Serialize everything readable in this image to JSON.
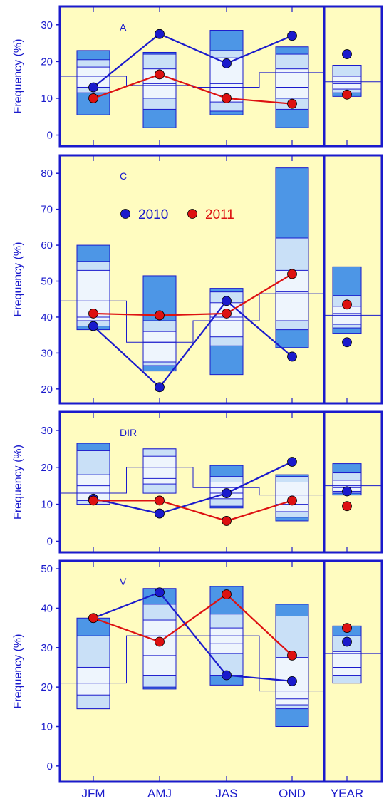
{
  "chart_data": [
    {
      "type": "box",
      "panel_label": "A",
      "ylabel": "Frequency (%)",
      "ylim": [
        -3,
        35
      ],
      "yticks": [
        0,
        10,
        20,
        30
      ],
      "categories": [
        "JFM",
        "AMJ",
        "JAS",
        "OND",
        "YEAR"
      ],
      "boxes": [
        {
          "min": 5.5,
          "p10": 11.5,
          "p25": 13,
          "median": 16,
          "p75": 18.5,
          "p90": 20.5,
          "max": 23
        },
        {
          "min": 2,
          "p10": 7,
          "p25": 10,
          "median": 14,
          "p75": 18,
          "p90": 22,
          "max": 22.5
        },
        {
          "min": 5.5,
          "p10": 6.5,
          "p25": 9,
          "median": 14,
          "p75": 21,
          "p90": 23,
          "max": 28.5
        },
        {
          "min": 2,
          "p10": 7,
          "p25": 10,
          "median": 13,
          "p75": 18,
          "p90": 22,
          "max": 24
        },
        {
          "min": 10.5,
          "p10": 11.5,
          "p25": 12.5,
          "median": 14,
          "p75": 16,
          "p90": 19,
          "max": 19
        }
      ],
      "step_means": [
        16,
        13.5,
        13,
        17
      ],
      "year_mean": 14.5,
      "series": [
        {
          "name": "2010",
          "color": "#1a1acc",
          "values": [
            13,
            27.5,
            19.5,
            27
          ],
          "year": 22
        },
        {
          "name": "2011",
          "color": "#dd1111",
          "values": [
            10,
            16.5,
            10,
            8.5
          ],
          "year": 11
        }
      ]
    },
    {
      "type": "box",
      "panel_label": "C",
      "ylabel": "Frequency (%)",
      "ylim": [
        16,
        85
      ],
      "yticks": [
        20,
        30,
        40,
        50,
        60,
        70,
        80
      ],
      "categories": [
        "JFM",
        "AMJ",
        "JAS",
        "OND",
        "YEAR"
      ],
      "boxes": [
        {
          "min": 36.5,
          "p10": 37.5,
          "p25": 39,
          "median": 40,
          "p75": 53,
          "p90": 55.5,
          "max": 60
        },
        {
          "min": 25,
          "p10": 26.5,
          "p25": 27.5,
          "median": 33,
          "p75": 36,
          "p90": 39,
          "max": 51.5
        },
        {
          "min": 24,
          "p10": 32,
          "p25": 34.5,
          "median": 40,
          "p75": 44,
          "p90": 47,
          "max": 48
        },
        {
          "min": 31.5,
          "p10": 36.5,
          "p25": 39,
          "median": 47,
          "p75": 53,
          "p90": 62,
          "max": 81.5
        },
        {
          "min": 35.5,
          "p10": 37,
          "p25": 38,
          "median": 41,
          "p75": 43,
          "p90": 46,
          "max": 54
        }
      ],
      "step_means": [
        44.5,
        33,
        39,
        46.5
      ],
      "year_mean": 40.5,
      "series": [
        {
          "name": "2010",
          "color": "#1a1acc",
          "values": [
            37.5,
            20.5,
            44.5,
            29
          ],
          "year": 33
        },
        {
          "name": "2011",
          "color": "#dd1111",
          "values": [
            41,
            40.5,
            41,
            52
          ],
          "year": 43.5
        }
      ],
      "legend": [
        {
          "label": "2010",
          "color": "#1a1acc"
        },
        {
          "label": "2011",
          "color": "#dd1111"
        }
      ]
    },
    {
      "type": "box",
      "panel_label": "DIR",
      "ylabel": "Frequency (%)",
      "ylim": [
        -3,
        35
      ],
      "yticks": [
        0,
        10,
        20,
        30
      ],
      "categories": [
        "JFM",
        "AMJ",
        "JAS",
        "OND",
        "YEAR"
      ],
      "boxes": [
        {
          "min": 10,
          "p10": 10,
          "p25": 11,
          "median": 15,
          "p75": 18,
          "p90": 24.5,
          "max": 26.5
        },
        {
          "min": 13,
          "p10": 13,
          "p25": 15.5,
          "median": 17,
          "p75": 23,
          "p90": 25,
          "max": 25
        },
        {
          "min": 9,
          "p10": 9.5,
          "p25": 11.5,
          "median": 13,
          "p75": 16,
          "p90": 17.5,
          "max": 20.5
        },
        {
          "min": 5.5,
          "p10": 6.5,
          "p25": 8,
          "median": 10,
          "p75": 16,
          "p90": 17.5,
          "max": 18
        },
        {
          "min": 12.5,
          "p10": 13,
          "p25": 13.5,
          "median": 14.5,
          "p75": 16.5,
          "p90": 18.5,
          "max": 21
        }
      ],
      "step_means": [
        13,
        20,
        14.5,
        12.5
      ],
      "year_mean": 15,
      "series": [
        {
          "name": "2010",
          "color": "#1a1acc",
          "values": [
            11.5,
            7.5,
            13,
            21.5
          ],
          "year": 13.5
        },
        {
          "name": "2011",
          "color": "#dd1111",
          "values": [
            11,
            11,
            5.5,
            11
          ],
          "year": 9.5
        }
      ]
    },
    {
      "type": "box",
      "panel_label": "V",
      "ylabel": "Frequency (%)",
      "ylim": [
        -4,
        52
      ],
      "yticks": [
        0,
        10,
        20,
        30,
        40,
        50
      ],
      "categories": [
        "JFM",
        "AMJ",
        "JAS",
        "OND",
        "YEAR"
      ],
      "boxes": [
        {
          "min": 14.5,
          "p10": 14.5,
          "p25": 18,
          "median": 21,
          "p75": 25,
          "p90": 33,
          "max": 37.5
        },
        {
          "min": 19.5,
          "p10": 20,
          "p25": 23,
          "median": 28,
          "p75": 37,
          "p90": 41,
          "max": 45
        },
        {
          "min": 20.5,
          "p10": 23,
          "p25": 28.5,
          "median": 31,
          "p75": 35,
          "p90": 38.5,
          "max": 45.5
        },
        {
          "min": 10,
          "p10": 14.5,
          "p25": 15.5,
          "median": 17,
          "p75": 27.5,
          "p90": 38,
          "max": 41
        },
        {
          "min": 21,
          "p10": 21,
          "p25": 23,
          "median": 25,
          "p75": 29,
          "p90": 33,
          "max": 35.5
        }
      ],
      "step_means": [
        21,
        33,
        33,
        19
      ],
      "year_mean": 28.5,
      "series": [
        {
          "name": "2010",
          "color": "#1a1acc",
          "values": [
            37.5,
            44,
            23,
            21.5
          ],
          "year": 31.5
        },
        {
          "name": "2011",
          "color": "#dd1111",
          "values": [
            37.5,
            31.5,
            43.5,
            28
          ],
          "year": 35
        }
      ]
    }
  ]
}
